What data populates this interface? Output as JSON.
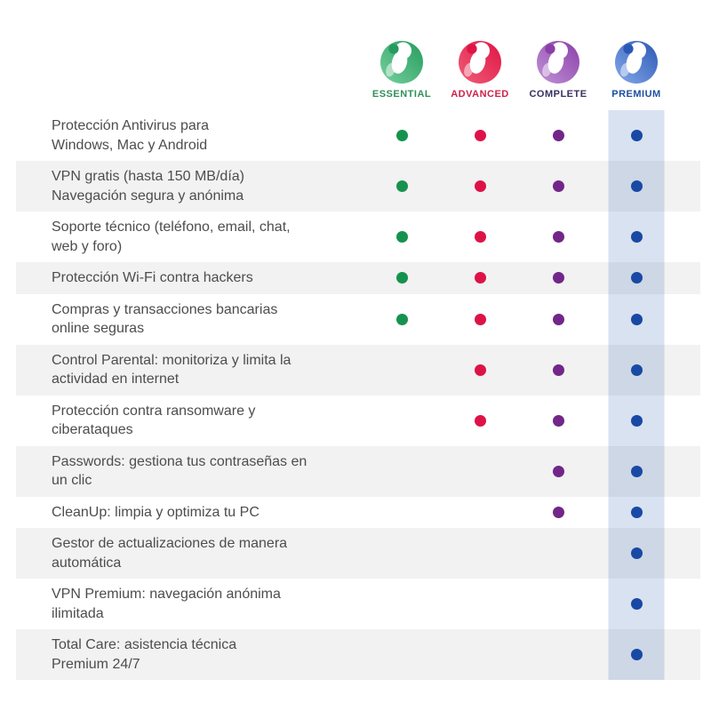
{
  "plans": [
    {
      "label": "ESSENTIAL",
      "label_color": "#2f8f5b",
      "dot_color": "#15934e",
      "logo_light": "#77d19e",
      "logo_dark": "#259b5d",
      "logo_icon": "panda-logo-green"
    },
    {
      "label": "ADVANCED",
      "label_color": "#cc2149",
      "dot_color": "#dd1347",
      "logo_light": "#ef5e78",
      "logo_dark": "#e01445",
      "logo_icon": "panda-logo-red"
    },
    {
      "label": "COMPLETE",
      "label_color": "#35315f",
      "dot_color": "#722688",
      "logo_light": "#c093d6",
      "logo_dark": "#8b3fa8",
      "logo_icon": "panda-logo-purple"
    },
    {
      "label": "PREMIUM",
      "label_color": "#1d4fa1",
      "dot_color": "#1849a5",
      "logo_light": "#85a9ea",
      "logo_dark": "#2b58b5",
      "logo_icon": "panda-logo-blue"
    }
  ],
  "features": [
    {
      "text": "Protección Antivirus para\nWindows, Mac y Android",
      "availability": [
        true,
        true,
        true,
        true
      ]
    },
    {
      "text": "VPN gratis (hasta 150 MB/día)\nNavegación segura y anónima",
      "availability": [
        true,
        true,
        true,
        true
      ]
    },
    {
      "text": "Soporte técnico (teléfono, email, chat,\nweb y foro)",
      "availability": [
        true,
        true,
        true,
        true
      ]
    },
    {
      "text": "Protección Wi-Fi contra hackers",
      "availability": [
        true,
        true,
        true,
        true
      ]
    },
    {
      "text": "Compras y transacciones bancarias\nonline seguras",
      "availability": [
        true,
        true,
        true,
        true
      ]
    },
    {
      "text": "Control Parental: monitoriza y limita la\nactividad en internet",
      "availability": [
        false,
        true,
        true,
        true
      ]
    },
    {
      "text": "Protección contra ransomware y\nciberataques",
      "availability": [
        false,
        true,
        true,
        true
      ]
    },
    {
      "text": "Passwords: gestiona tus contraseñas en\nun clic",
      "availability": [
        false,
        false,
        true,
        true
      ]
    },
    {
      "text": "CleanUp: limpia y optimiza tu PC",
      "availability": [
        false,
        false,
        true,
        true
      ]
    },
    {
      "text": "Gestor de actualizaciones de manera\nautomática",
      "availability": [
        false,
        false,
        false,
        true
      ]
    },
    {
      "text": "VPN Premium: navegación anónima\nilimitada",
      "availability": [
        false,
        false,
        false,
        true
      ]
    },
    {
      "text": "Total Care: asistencia técnica\nPremium 24/7",
      "availability": [
        false,
        false,
        false,
        true
      ]
    }
  ],
  "style": {
    "background": "#ffffff",
    "alt_row_bg": "#f2f2f2",
    "feature_text_color": "#4d4d4d",
    "premium_band": "rgba(21,72,160,0.16)"
  }
}
